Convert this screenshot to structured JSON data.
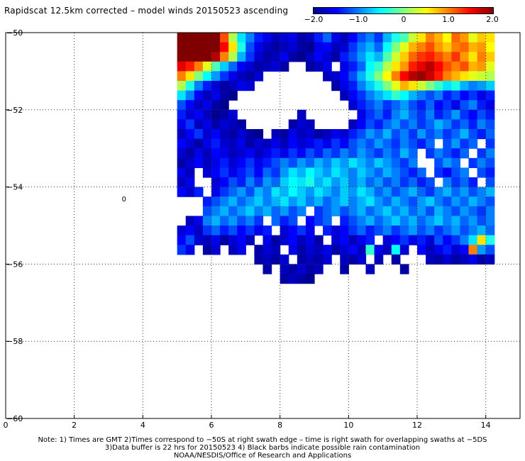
{
  "title": "Rapidscat 12.5km corrected – model winds 20150523 ascending",
  "colorbar": {
    "ticks": [
      "−2.0",
      "−1.0",
      "0",
      "1.0",
      "2.0"
    ],
    "tick_values": [
      -2.0,
      -1.0,
      0,
      1.0,
      2.0
    ],
    "stops": [
      "#00008f",
      "#0000ff",
      "#0080ff",
      "#00ffff",
      "#80ff80",
      "#ffff00",
      "#ff8000",
      "#ff0000",
      "#800000"
    ]
  },
  "notes": {
    "line1": "Note: 1) Times are GMT 2)Times correspond to −50S at right swath edge – time is right swath for overlapping swaths at −5DS",
    "line2": "3)Data buffer is 22 hrs for 20150523 4) Black barbs indicate possible rain contamination",
    "line3": "NOAA/NESDIS/Office of Research and Applications"
  },
  "chart_data": {
    "type": "heatmap",
    "title": "Rapidscat 12.5km corrected – model winds 20150523 ascending",
    "x_ticks": [
      "0",
      "2",
      "4",
      "6",
      "8",
      "10",
      "12",
      "14"
    ],
    "x_tick_values": [
      0,
      2,
      4,
      6,
      8,
      10,
      12,
      14
    ],
    "y_ticks": [
      "−50",
      "−52",
      "−54",
      "−56",
      "−58",
      "−60"
    ],
    "y_tick_values": [
      -50,
      -52,
      -54,
      -56,
      -58,
      -60
    ],
    "xlim": [
      0,
      15
    ],
    "ylim": [
      -60,
      -50
    ],
    "grid": true,
    "value_range": [
      -2.0,
      2.0
    ],
    "cell_size_deg": 0.25,
    "annotations": [
      {
        "text": "0",
        "x": 3.45,
        "y": -54.3
      }
    ],
    "rows": [
      {
        "y": -50.125,
        "x0": 5.125,
        "values": [
          2.0,
          2.0,
          2.0,
          2.0,
          2.0,
          1.2,
          0.2,
          -0.6,
          -1.0,
          -1.4,
          -1.6,
          -1.8,
          -1.7,
          -1.6,
          -1.9,
          -1.8,
          -1.4,
          -1.1,
          -1.6,
          -1.8,
          -1.5,
          -1.2,
          -1.0,
          -1.3,
          -0.8,
          -0.4,
          -0.2,
          0.3,
          0.6,
          1.0,
          0.8,
          0.5,
          1.1,
          0.9,
          0.4,
          0.7,
          0.6
        ]
      },
      {
        "y": -50.375,
        "x0": 5.125,
        "values": [
          2.0,
          2.0,
          2.0,
          2.0,
          2.0,
          1.5,
          0.6,
          -0.4,
          -1.2,
          -1.6,
          -1.8,
          -1.9,
          -1.8,
          -1.7,
          -1.9,
          -2.0,
          -1.6,
          -1.5,
          -1.8,
          -1.7,
          -1.3,
          -1.0,
          -0.8,
          -1.1,
          -0.5,
          0.0,
          0.4,
          0.8,
          1.0,
          1.2,
          0.9,
          0.7,
          1.0,
          1.1,
          0.8,
          0.9,
          0.5
        ]
      },
      {
        "y": -50.625,
        "x0": 5.125,
        "values": [
          2.0,
          2.0,
          2.0,
          2.0,
          1.8,
          1.0,
          0.2,
          -0.8,
          -1.3,
          -1.7,
          -1.9,
          -1.8,
          -1.6,
          -1.9,
          -2.0,
          -1.8,
          -1.5,
          -1.7,
          -1.9,
          -1.4,
          -1.2,
          -0.9,
          -0.6,
          -0.8,
          -0.2,
          0.3,
          0.7,
          1.1,
          1.3,
          1.4,
          1.2,
          1.0,
          1.3,
          0.9,
          0.6,
          1.0,
          0.7
        ]
      },
      {
        "y": -50.875,
        "x0": 5.125,
        "values": [
          1.6,
          1.4,
          1.0,
          0.4,
          -0.2,
          -0.7,
          -1.1,
          -1.5,
          -1.7,
          -1.9,
          -1.8,
          -1.7,
          -1.9,
          null,
          null,
          -1.9,
          -1.8,
          -1.6,
          null,
          -1.6,
          -1.4,
          -1.1,
          -0.5,
          -0.3,
          0.2,
          0.6,
          0.9,
          1.4,
          1.6,
          1.8,
          1.5,
          1.2,
          1.0,
          1.2,
          0.8,
          0.9,
          0.4
        ]
      },
      {
        "y": -51.125,
        "x0": 5.125,
        "values": [
          1.0,
          0.6,
          0.0,
          -0.5,
          -0.9,
          -1.3,
          -1.6,
          -1.8,
          -1.9,
          -1.7,
          null,
          null,
          null,
          null,
          null,
          null,
          null,
          -1.8,
          -1.7,
          -1.5,
          -1.2,
          -0.8,
          -0.4,
          0.0,
          0.5,
          1.0,
          1.5,
          1.8,
          1.9,
          1.7,
          1.4,
          1.0,
          0.8,
          0.6,
          0.4,
          0.3,
          0.2
        ]
      },
      {
        "y": -51.375,
        "x0": 5.125,
        "values": [
          0.2,
          -0.4,
          -1.0,
          -1.4,
          -1.7,
          -1.9,
          -1.8,
          -1.6,
          -1.7,
          null,
          null,
          null,
          null,
          null,
          null,
          null,
          null,
          null,
          -1.9,
          -1.6,
          -1.4,
          -1.0,
          -0.7,
          -0.4,
          0.0,
          0.4,
          0.8,
          0.6,
          0.3,
          0.0,
          -0.3,
          -0.6,
          -0.4,
          -0.8,
          -1.0,
          -0.9,
          -0.7
        ]
      },
      {
        "y": -51.625,
        "x0": 5.125,
        "values": [
          -0.6,
          -1.0,
          -1.5,
          -1.8,
          -1.6,
          -1.9,
          -2.0,
          null,
          null,
          null,
          null,
          null,
          null,
          null,
          null,
          null,
          null,
          null,
          null,
          -1.8,
          -1.5,
          -1.3,
          -1.0,
          -0.8,
          -0.6,
          -0.3,
          -0.5,
          -0.8,
          -1.0,
          -1.2,
          -1.0,
          -1.4,
          -1.2,
          -1.5,
          -1.3,
          -1.6,
          -1.4
        ]
      },
      {
        "y": -51.875,
        "x0": 5.125,
        "values": [
          -1.2,
          -1.5,
          -1.8,
          -1.6,
          -1.9,
          -2.0,
          null,
          null,
          null,
          null,
          null,
          null,
          null,
          null,
          null,
          null,
          null,
          null,
          null,
          null,
          -1.7,
          -1.4,
          -1.2,
          -1.0,
          -1.3,
          -1.1,
          -0.9,
          -1.2,
          -1.4,
          -1.1,
          -1.5,
          -1.3,
          -1.6,
          -1.2,
          -1.0,
          -1.4,
          -1.6
        ]
      },
      {
        "y": -52.125,
        "x0": 5.125,
        "values": [
          -1.4,
          -1.7,
          -1.5,
          -1.8,
          -2.0,
          -1.9,
          -1.7,
          null,
          null,
          null,
          null,
          null,
          null,
          null,
          -1.8,
          null,
          null,
          null,
          null,
          null,
          null,
          -1.6,
          -1.3,
          -1.1,
          -1.4,
          -1.0,
          -0.8,
          -1.1,
          -1.3,
          -1.0,
          -1.4,
          -1.2,
          -0.9,
          -1.3,
          -1.5,
          -1.2,
          -1.4
        ]
      },
      {
        "y": -52.375,
        "x0": 5.125,
        "values": [
          -1.6,
          -1.3,
          -1.8,
          -1.6,
          -1.9,
          -1.7,
          -1.8,
          -1.9,
          null,
          null,
          null,
          null,
          null,
          -1.9,
          -1.7,
          -1.8,
          null,
          null,
          null,
          null,
          -1.8,
          -1.5,
          -1.2,
          -1.4,
          -1.1,
          -0.9,
          -1.2,
          -1.0,
          -1.3,
          -1.1,
          -0.8,
          -1.0,
          -1.3,
          -1.1,
          -1.4,
          -1.0,
          -1.2
        ]
      },
      {
        "y": -52.625,
        "x0": 5.125,
        "values": [
          -1.8,
          -1.5,
          -1.3,
          -1.7,
          -1.5,
          -1.8,
          -1.9,
          -1.7,
          -1.9,
          -2.0,
          null,
          -1.8,
          -1.9,
          -1.6,
          -1.8,
          -1.7,
          -1.9,
          -1.8,
          -1.6,
          -1.7,
          -1.4,
          -1.2,
          -0.9,
          -1.1,
          -0.8,
          -1.2,
          -1.0,
          -1.3,
          -0.9,
          -1.2,
          -1.0,
          -1.3,
          -1.1,
          -0.8,
          -1.2,
          -1.4,
          -1.1
        ]
      },
      {
        "y": -52.875,
        "x0": 5.125,
        "values": [
          -1.5,
          -1.7,
          -1.9,
          -1.6,
          -1.4,
          -1.7,
          -1.8,
          -1.6,
          -1.9,
          -1.7,
          -1.8,
          -1.6,
          -1.8,
          -1.5,
          -1.7,
          -1.6,
          -1.4,
          -1.6,
          -1.3,
          -1.5,
          -1.2,
          -1.0,
          -1.2,
          -0.9,
          -1.1,
          -1.3,
          -1.0,
          -1.2,
          -1.4,
          -1.1,
          null,
          -1.2,
          -0.9,
          -1.3,
          -1.1,
          null,
          -1.3
        ]
      },
      {
        "y": -53.125,
        "x0": 5.125,
        "values": [
          -1.7,
          -1.9,
          -1.6,
          -1.8,
          -1.5,
          -1.6,
          -1.8,
          -1.7,
          -1.5,
          -1.8,
          -1.6,
          -1.4,
          -1.6,
          -1.3,
          -1.5,
          -1.2,
          -1.4,
          -1.1,
          -1.3,
          -1.0,
          -1.2,
          -0.9,
          -1.1,
          -1.3,
          -1.0,
          -1.2,
          -0.8,
          -1.1,
          null,
          -1.3,
          -1.0,
          -1.2,
          -1.4,
          -1.1,
          null,
          -1.3,
          -1.0
        ]
      },
      {
        "y": -53.375,
        "x0": 5.125,
        "values": [
          -1.9,
          -1.7,
          -1.5,
          -1.8,
          -1.6,
          -1.4,
          -1.7,
          -1.5,
          -1.3,
          -1.6,
          -1.4,
          -1.2,
          -1.0,
          -1.2,
          -0.9,
          -1.1,
          -0.8,
          -1.0,
          -0.7,
          -0.9,
          -0.6,
          -0.8,
          -1.0,
          -0.7,
          -0.9,
          -1.1,
          -1.3,
          -1.0,
          null,
          null,
          -1.2,
          -0.9,
          -1.1,
          null,
          -1.3,
          -1.0,
          -1.2
        ]
      },
      {
        "y": -53.625,
        "x0": 5.125,
        "values": [
          -1.6,
          -1.8,
          null,
          -1.7,
          -1.5,
          -1.3,
          -1.6,
          -1.4,
          -1.2,
          -1.5,
          -1.1,
          -1.3,
          -0.9,
          -0.6,
          -0.8,
          -0.5,
          -0.7,
          -0.9,
          -0.6,
          -0.8,
          -1.0,
          -0.7,
          -0.9,
          -1.1,
          -0.8,
          -1.0,
          -1.2,
          -1.4,
          -1.1,
          null,
          -1.3,
          -1.5,
          -1.2,
          -1.0,
          null,
          -1.2,
          -1.4
        ]
      },
      {
        "y": -53.875,
        "x0": 5.125,
        "values": [
          -1.8,
          -1.6,
          null,
          null,
          -1.7,
          -1.5,
          -1.2,
          -1.4,
          -1.0,
          -1.3,
          -0.9,
          -1.1,
          -0.7,
          -0.5,
          -0.6,
          -0.4,
          -0.8,
          -0.6,
          -0.9,
          -0.7,
          -1.0,
          -0.8,
          -1.1,
          -0.9,
          -1.2,
          -1.0,
          -1.3,
          -1.1,
          -1.4,
          -1.2,
          null,
          -1.0,
          -1.3,
          -1.1,
          -1.4,
          null,
          -1.2
        ]
      },
      {
        "y": -54.125,
        "x0": 5.125,
        "values": [
          -1.5,
          -1.7,
          -1.4,
          null,
          -1.6,
          -1.3,
          -1.1,
          -0.9,
          -1.2,
          -0.8,
          -1.0,
          -0.6,
          -0.8,
          -0.5,
          -0.7,
          -0.9,
          -0.6,
          -0.8,
          -1.0,
          -0.7,
          -0.9,
          -0.6,
          -0.8,
          -1.1,
          -0.9,
          -1.2,
          -1.0,
          -0.8,
          -1.1,
          -1.3,
          -1.0,
          -0.8,
          -1.1,
          -0.9,
          -1.2,
          -1.0,
          -0.8
        ]
      },
      {
        "y": -54.375,
        "x0": 5.125,
        "values": [
          null,
          null,
          null,
          -1.4,
          -1.2,
          -1.0,
          -0.8,
          -1.1,
          -0.9,
          -0.7,
          -1.0,
          -0.8,
          -0.6,
          -0.9,
          -0.7,
          -1.0,
          -0.8,
          -1.1,
          -0.9,
          -0.7,
          -1.0,
          -0.8,
          -0.6,
          -0.9,
          -1.1,
          -0.8,
          -1.0,
          -1.2,
          -0.9,
          -0.7,
          -1.0,
          -1.2,
          -0.9,
          -1.1,
          -0.8,
          -1.0,
          -1.2
        ]
      },
      {
        "y": -54.625,
        "x0": 5.125,
        "values": [
          null,
          null,
          null,
          -1.2,
          -1.0,
          -0.8,
          -1.1,
          -0.9,
          -0.7,
          -1.0,
          -0.8,
          -1.1,
          -0.9,
          -1.2,
          -1.0,
          null,
          -1.3,
          -1.1,
          -0.9,
          -1.2,
          -1.0,
          -0.8,
          -1.1,
          -0.9,
          -0.7,
          -1.0,
          -0.8,
          -1.1,
          -0.9,
          -1.2,
          -0.8,
          -1.0,
          -1.2,
          -0.9,
          -1.1,
          -1.3,
          -1.0
        ]
      },
      {
        "y": -54.875,
        "x0": 5.125,
        "values": [
          null,
          -1.8,
          -1.6,
          -1.0,
          -0.8,
          -1.1,
          -0.9,
          -1.2,
          -1.0,
          -1.3,
          null,
          -1.1,
          -1.4,
          -1.2,
          null,
          -1.5,
          -1.3,
          -1.1,
          null,
          -1.4,
          -1.2,
          -1.0,
          -0.8,
          -1.1,
          -0.9,
          -0.7,
          -1.0,
          -0.8,
          -1.1,
          -0.9,
          -0.7,
          -1.0,
          -0.8,
          -1.1,
          -0.9,
          -1.2,
          -1.0
        ]
      },
      {
        "y": -55.125,
        "x0": 5.125,
        "values": [
          -1.7,
          -1.5,
          -1.8,
          -1.3,
          -1.1,
          -1.4,
          -1.2,
          -1.5,
          -1.3,
          -1.6,
          -1.4,
          null,
          -1.7,
          -1.5,
          -1.3,
          -1.6,
          null,
          -1.4,
          -1.7,
          -1.5,
          -1.3,
          -1.1,
          -1.4,
          -1.2,
          -1.0,
          -1.3,
          -1.1,
          -0.9,
          -1.2,
          -1.0,
          -1.3,
          -1.1,
          -0.9,
          -1.2,
          -1.0,
          -0.8,
          -1.1
        ]
      },
      {
        "y": -55.375,
        "x0": 5.125,
        "values": [
          -1.5,
          -1.2,
          -1.7,
          -1.8,
          -1.6,
          -1.9,
          -1.7,
          -1.5,
          -1.8,
          null,
          -1.6,
          -1.9,
          -1.7,
          -1.5,
          -1.8,
          -1.6,
          -1.9,
          null,
          -1.7,
          -1.5,
          -1.8,
          -1.6,
          -1.4,
          null,
          -1.7,
          -1.5,
          -1.3,
          -1.6,
          -1.4,
          -1.7,
          -1.2,
          -1.5,
          -1.3,
          -1.0,
          -0.6,
          0.6,
          -0.4
        ]
      },
      {
        "y": -55.625,
        "x0": 5.125,
        "values": [
          -1.3,
          -1.6,
          null,
          -1.9,
          -1.7,
          null,
          -1.8,
          -1.6,
          null,
          -1.9,
          -1.7,
          -1.8,
          null,
          -1.6,
          -1.9,
          -1.7,
          -1.8,
          -1.6,
          -1.9,
          -1.7,
          -1.5,
          -1.8,
          -0.3,
          -1.6,
          -1.8,
          -0.5,
          -1.7,
          null,
          -1.5,
          -1.8,
          -1.6,
          -1.4,
          -1.7,
          -1.5,
          1.0,
          -0.9,
          -1.2
        ]
      },
      {
        "y": -55.875,
        "x0": 5.125,
        "values": [
          null,
          null,
          null,
          null,
          null,
          null,
          null,
          null,
          null,
          -1.9,
          -1.8,
          -1.9,
          -1.7,
          null,
          -1.9,
          -1.8,
          -1.9,
          -1.7,
          null,
          -1.8,
          -1.9,
          -1.7,
          null,
          -1.8,
          null,
          -1.9,
          null,
          null,
          null,
          -1.8,
          -1.9,
          -1.7,
          -1.9,
          -1.8,
          -1.6,
          -1.9,
          -1.8
        ]
      },
      {
        "y": -56.125,
        "x0": 5.125,
        "values": [
          null,
          null,
          null,
          null,
          null,
          null,
          null,
          null,
          null,
          null,
          -1.9,
          null,
          -1.8,
          -1.9,
          -1.7,
          -1.9,
          -1.8,
          null,
          null,
          -1.9,
          null,
          null,
          -1.8,
          null,
          null,
          null,
          -1.9,
          null,
          null,
          null,
          null,
          null,
          null,
          null,
          null,
          null,
          null
        ]
      },
      {
        "y": -56.375,
        "x0": 5.125,
        "values": [
          null,
          null,
          null,
          null,
          null,
          null,
          null,
          null,
          null,
          null,
          null,
          null,
          -1.9,
          -1.8,
          -1.9,
          -2.0,
          null,
          null,
          null,
          null,
          null,
          null,
          null,
          null,
          null,
          null,
          null,
          null,
          null,
          null,
          null,
          null,
          null,
          null,
          null,
          null,
          null
        ]
      }
    ]
  }
}
